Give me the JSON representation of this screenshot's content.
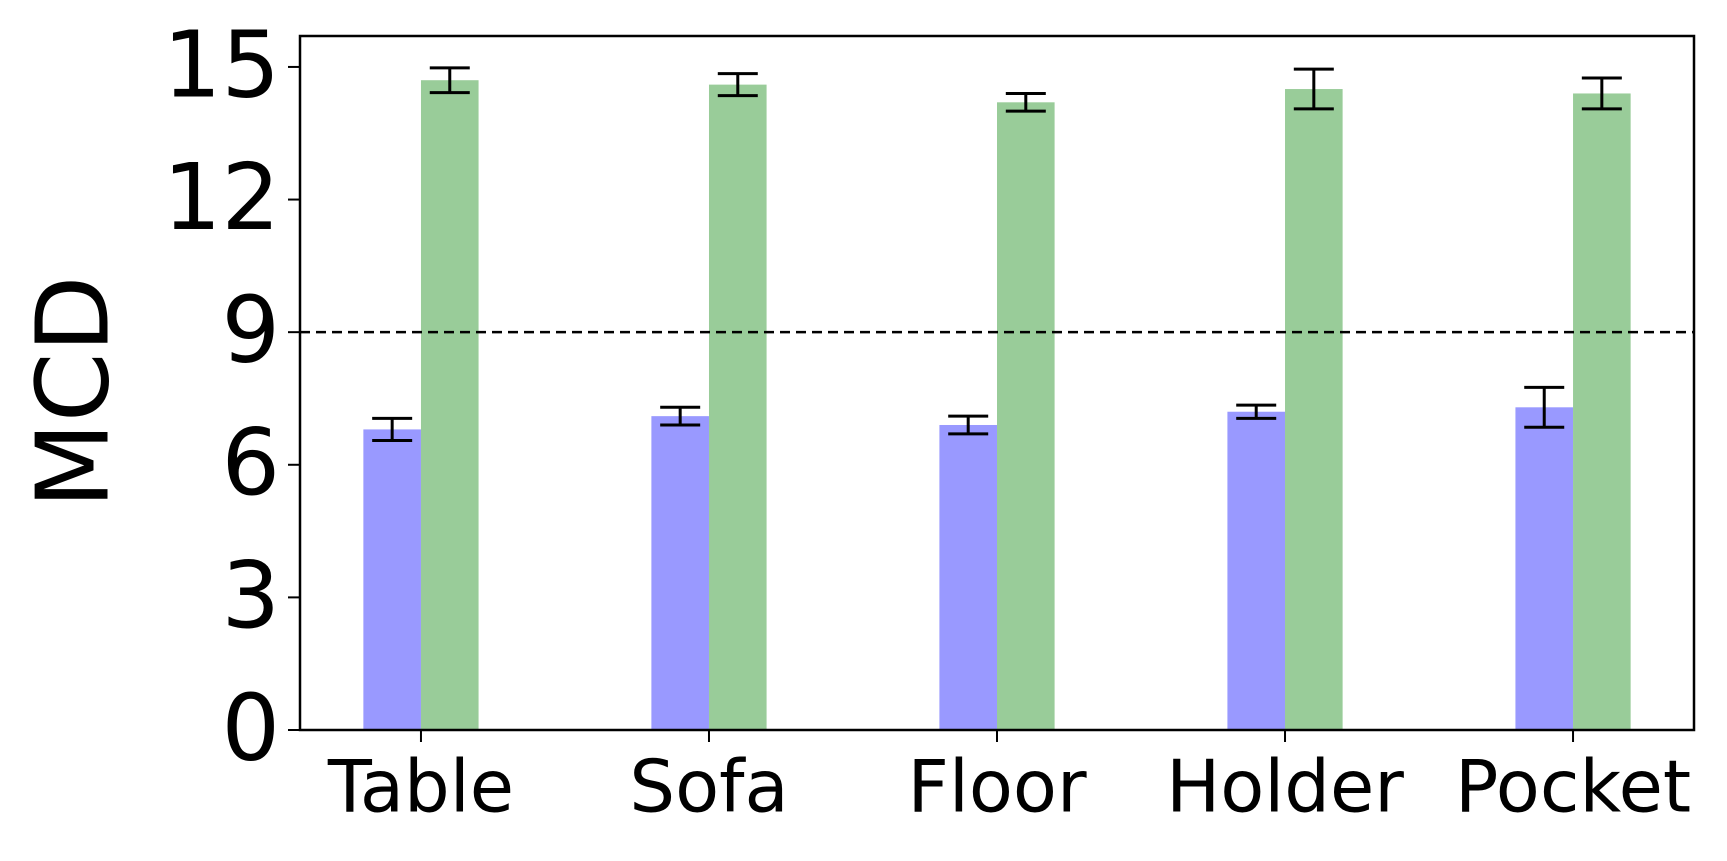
{
  "chart_data": {
    "type": "bar",
    "ylabel": "MCD",
    "categories": [
      "Table",
      "Sofa",
      "Floor",
      "Holder",
      "Pocket"
    ],
    "series": [
      {
        "color": "#9999ff",
        "values": [
          6.8,
          7.1,
          6.9,
          7.2,
          7.3
        ],
        "errors": [
          0.25,
          0.2,
          0.2,
          0.15,
          0.45
        ]
      },
      {
        "color": "#99cc99",
        "values": [
          14.7,
          14.6,
          14.2,
          14.5,
          14.4
        ],
        "errors": [
          0.28,
          0.25,
          0.2,
          0.45,
          0.35
        ]
      }
    ],
    "ylim": [
      0,
      15.7
    ],
    "yticks": [
      0,
      3,
      6,
      9,
      12,
      15
    ],
    "reference_line": 9,
    "grid": false
  }
}
